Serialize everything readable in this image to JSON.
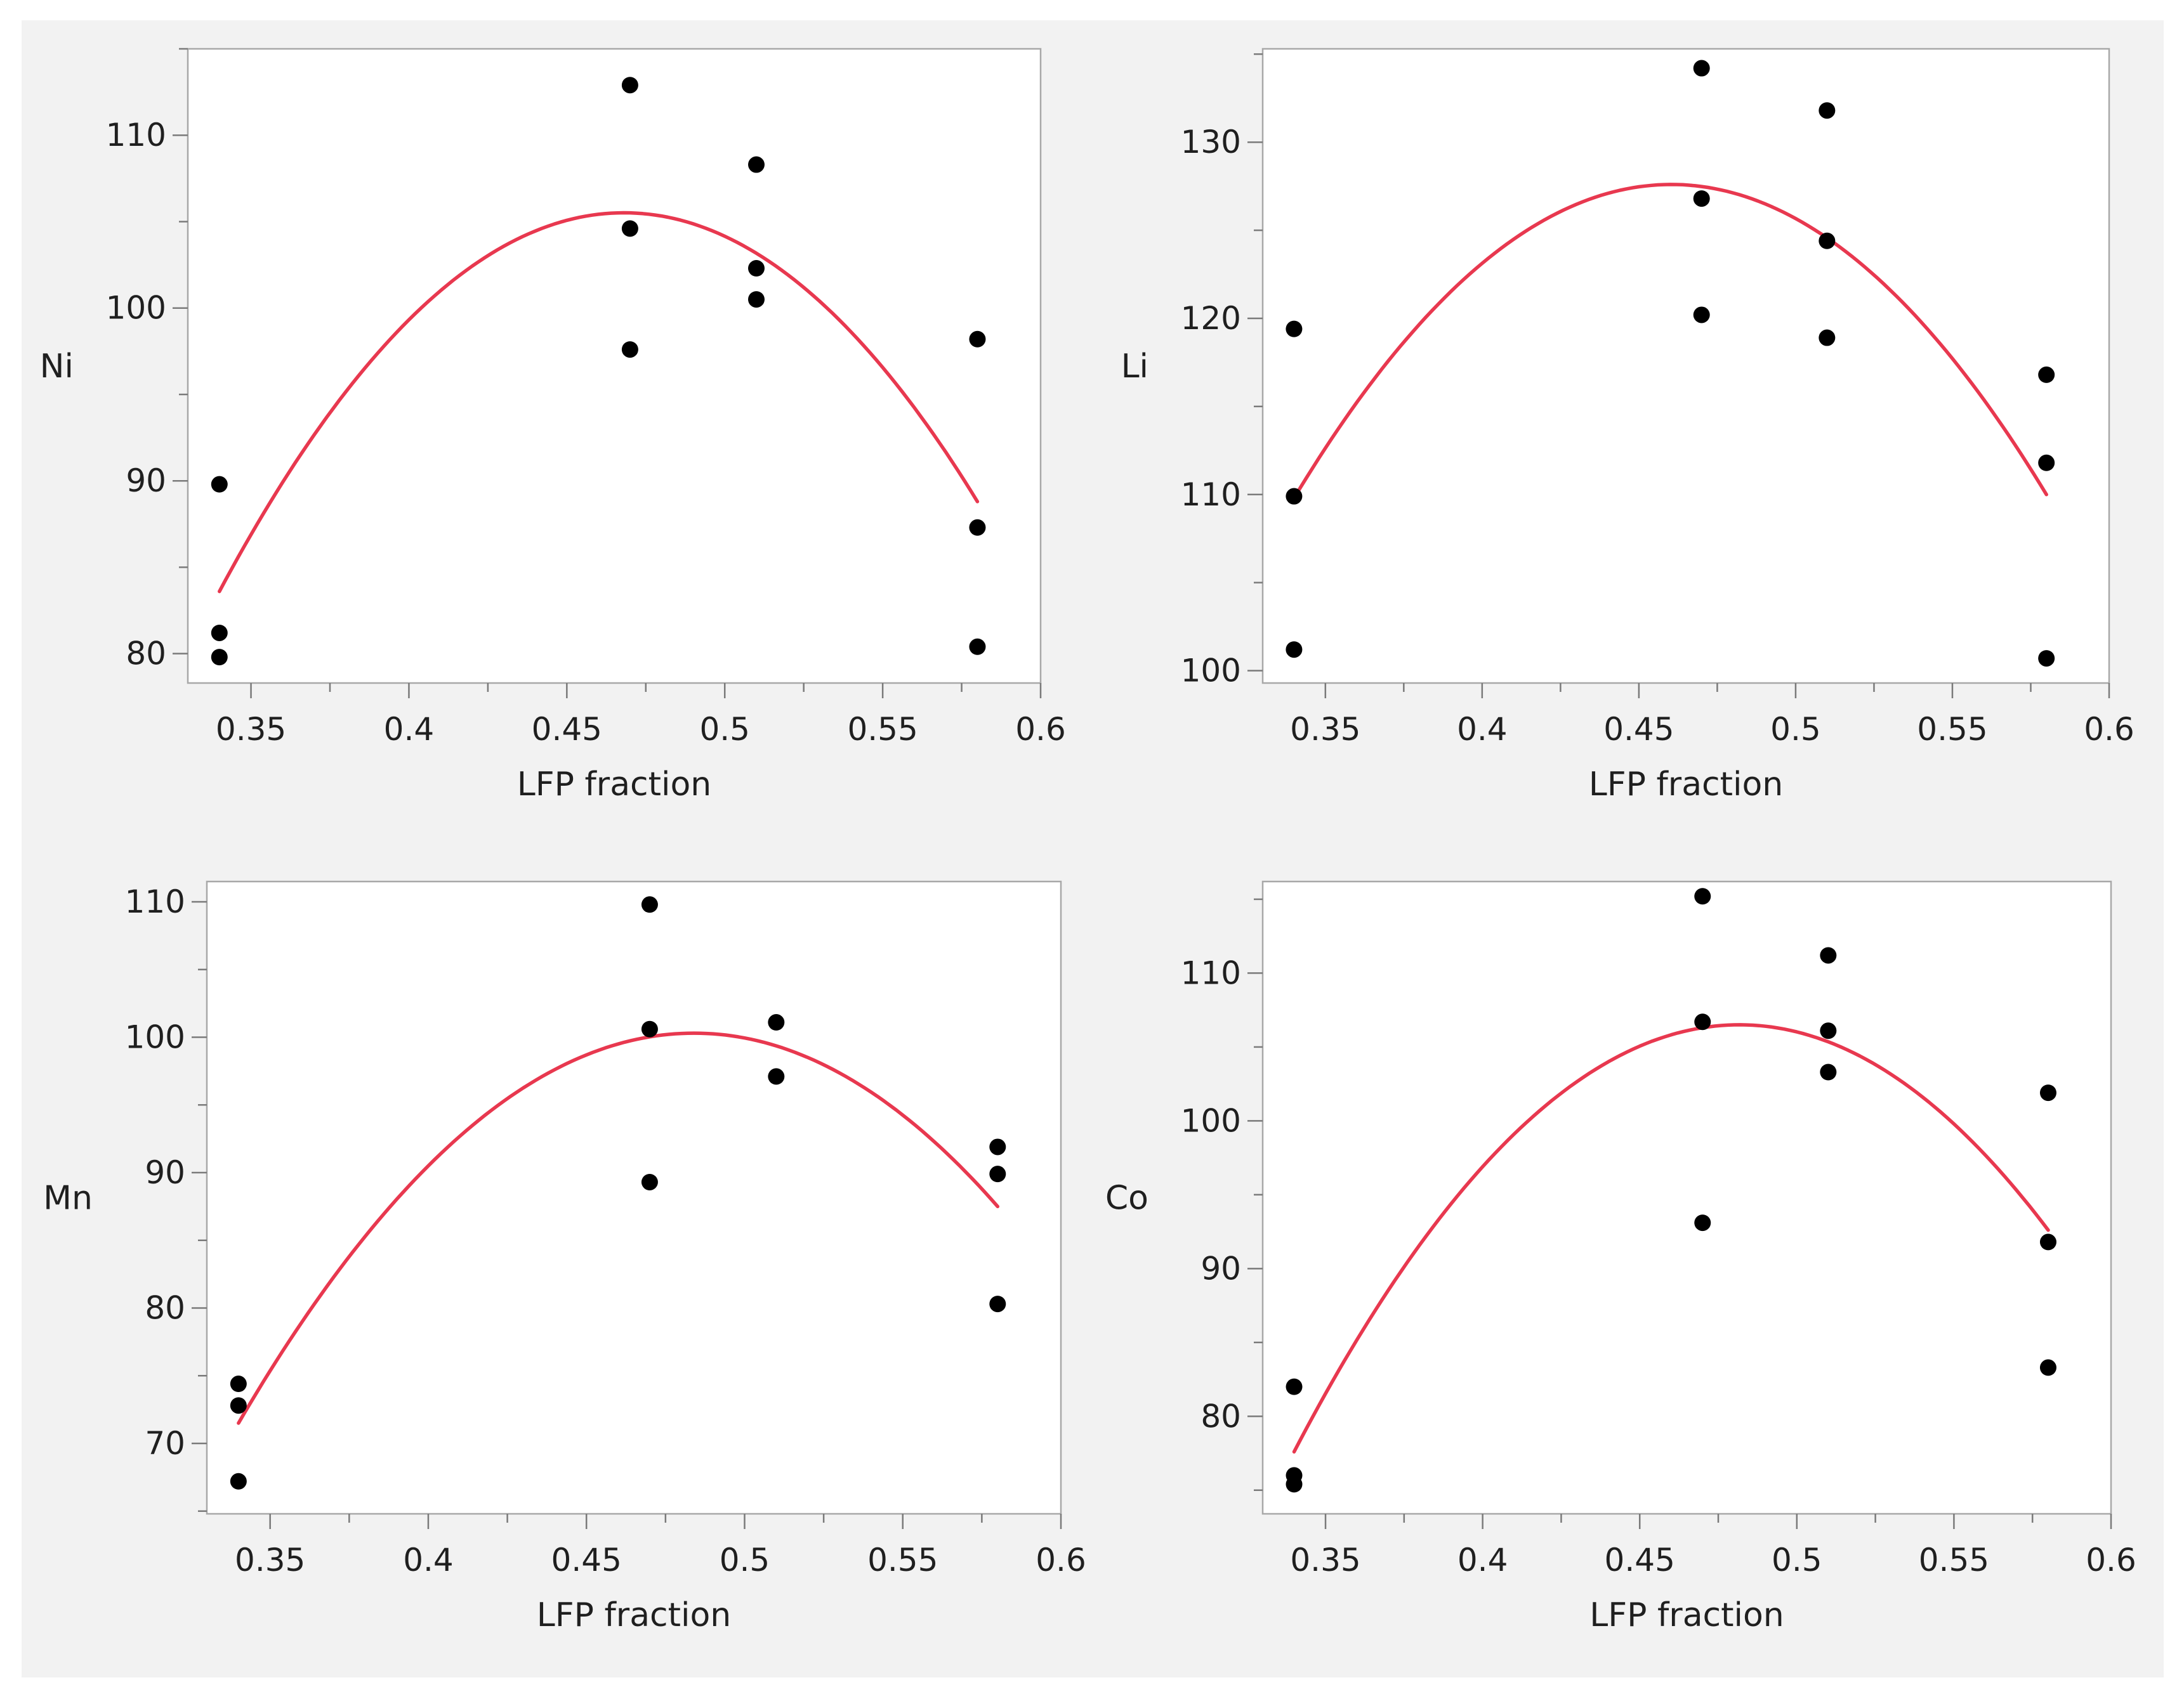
{
  "figure": {
    "background": "#f2f2f2",
    "point_color": "#000000",
    "curve_color": "#e8384f"
  },
  "chart_data": [
    {
      "type": "scatter",
      "title": "",
      "xlabel": "LFP fraction",
      "ylabel": "Ni",
      "xlim": [
        0.33,
        0.6
      ],
      "ylim": [
        78.3,
        115
      ],
      "xticks": [
        0.35,
        0.4,
        0.45,
        0.5,
        0.55,
        0.6
      ],
      "xticklabels": [
        "0.35",
        "0.4",
        "0.45",
        "0.5",
        "0.55",
        "0.6"
      ],
      "yticks": [
        80,
        90,
        100,
        110
      ],
      "yticklabels": [
        "80",
        "90",
        "100",
        "110"
      ],
      "grid": false,
      "points": {
        "x": [
          0.34,
          0.34,
          0.34,
          0.47,
          0.47,
          0.47,
          0.51,
          0.51,
          0.51,
          0.58,
          0.58,
          0.58
        ],
        "y": [
          89.8,
          81.2,
          79.8,
          112.9,
          104.6,
          97.6,
          108.3,
          102.3,
          100.5,
          98.2,
          87.3,
          80.4
        ]
      },
      "fit": {
        "type": "quadratic",
        "x": [
          0.34,
          0.465,
          0.58
        ],
        "y": [
          83.6,
          105.5,
          88.8
        ]
      }
    },
    {
      "type": "scatter",
      "title": "",
      "xlabel": "LFP fraction",
      "ylabel": "Li",
      "xlim": [
        0.33,
        0.6
      ],
      "ylim": [
        99.3,
        135.3
      ],
      "xticks": [
        0.35,
        0.4,
        0.45,
        0.5,
        0.55,
        0.6
      ],
      "xticklabels": [
        "0.35",
        "0.4",
        "0.45",
        "0.5",
        "0.55",
        "0.6"
      ],
      "yticks": [
        100,
        110,
        120,
        130
      ],
      "yticklabels": [
        "100",
        "110",
        "120",
        "130"
      ],
      "grid": false,
      "points": {
        "x": [
          0.34,
          0.34,
          0.34,
          0.47,
          0.47,
          0.47,
          0.51,
          0.51,
          0.51,
          0.58,
          0.58,
          0.58
        ],
        "y": [
          119.4,
          109.9,
          101.2,
          134.2,
          126.8,
          120.2,
          131.8,
          124.4,
          118.9,
          116.8,
          111.8,
          100.7
        ]
      },
      "fit": {
        "type": "quadratic",
        "x": [
          0.34,
          0.46,
          0.58
        ],
        "y": [
          109.8,
          127.6,
          110.0
        ]
      }
    },
    {
      "type": "scatter",
      "title": "",
      "xlabel": "LFP fraction",
      "ylabel": "Mn",
      "xlim": [
        0.33,
        0.6
      ],
      "ylim": [
        64.8,
        111.5
      ],
      "xticks": [
        0.35,
        0.4,
        0.45,
        0.5,
        0.55,
        0.6
      ],
      "xticklabels": [
        "0.35",
        "0.4",
        "0.45",
        "0.5",
        "0.55",
        "0.6"
      ],
      "yticks": [
        70,
        80,
        90,
        100,
        110
      ],
      "yticklabels": [
        "70",
        "80",
        "90",
        "100",
        "110"
      ],
      "grid": false,
      "points": {
        "x": [
          0.34,
          0.34,
          0.34,
          0.47,
          0.47,
          0.47,
          0.51,
          0.51,
          0.58,
          0.58,
          0.58
        ],
        "y": [
          74.4,
          72.8,
          67.2,
          109.8,
          100.6,
          89.3,
          101.1,
          97.1,
          91.9,
          89.9,
          80.3
        ]
      },
      "fit": {
        "type": "quadratic",
        "x": [
          0.34,
          0.485,
          0.58
        ],
        "y": [
          71.5,
          100.3,
          87.5
        ]
      }
    },
    {
      "type": "scatter",
      "title": "",
      "xlabel": "LFP fraction",
      "ylabel": "Co",
      "xlim": [
        0.33,
        0.6
      ],
      "ylim": [
        73.4,
        116.2
      ],
      "xticks": [
        0.35,
        0.4,
        0.45,
        0.5,
        0.55,
        0.6
      ],
      "xticklabels": [
        "0.35",
        "0.4",
        "0.45",
        "0.5",
        "0.55",
        "0.6"
      ],
      "yticks": [
        80,
        90,
        100,
        110
      ],
      "yticklabels": [
        "80",
        "90",
        "100",
        "110"
      ],
      "grid": false,
      "points": {
        "x": [
          0.34,
          0.34,
          0.34,
          0.47,
          0.47,
          0.47,
          0.51,
          0.51,
          0.51,
          0.58,
          0.58,
          0.58
        ],
        "y": [
          82.0,
          76.0,
          75.4,
          115.2,
          106.7,
          93.1,
          111.2,
          106.1,
          103.3,
          101.9,
          91.8,
          83.3
        ]
      },
      "fit": {
        "type": "quadratic",
        "x": [
          0.34,
          0.483,
          0.58
        ],
        "y": [
          77.6,
          106.5,
          92.6
        ]
      }
    }
  ]
}
